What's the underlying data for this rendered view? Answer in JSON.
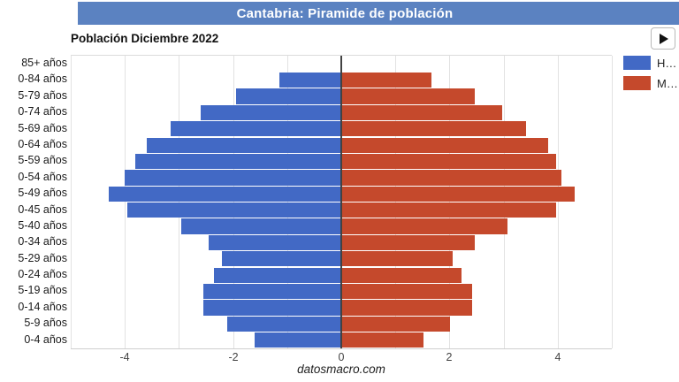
{
  "header": {
    "title": "Cantabria: Piramide de población"
  },
  "subtitle": "Población Diciembre 2022",
  "controls": {
    "play_button": "play"
  },
  "legend": {
    "items": [
      {
        "label": "H…",
        "color": "#4269c5"
      },
      {
        "label": "M…",
        "color": "#c5492c"
      }
    ]
  },
  "footer": {
    "brand": "datosmacro.com"
  },
  "colors": {
    "header_bg": "#5b82c1",
    "male_bar": "#4269c5",
    "female_bar": "#c5492c",
    "center_axis": "#424242",
    "gridline": "#e2e2e2",
    "tick_text": "#444444"
  },
  "chart_data": {
    "type": "bar",
    "subtype": "population-pyramid",
    "title": "Cantabria: Piramide de población",
    "subtitle": "Población Diciembre 2022",
    "categories": [
      "85+ años",
      "0-84 años",
      "5-79 años",
      "0-74 años",
      "5-69 años",
      "0-64 años",
      "5-59 años",
      "0-54 años",
      "5-49 años",
      "0-45 años",
      "5-40 años",
      "0-34 años",
      "5-29 años",
      "0-24 años",
      "5-19 años",
      "0-14 años",
      "5-9 años",
      "0-4 años"
    ],
    "series": [
      {
        "name": "H…",
        "color": "#4269c5",
        "values": [
          0,
          -1.15,
          -1.95,
          -2.6,
          -3.15,
          -3.6,
          -3.8,
          -4.0,
          -4.3,
          -3.95,
          -2.95,
          -2.45,
          -2.2,
          -2.35,
          -2.55,
          -2.55,
          -2.1,
          -1.6
        ]
      },
      {
        "name": "M…",
        "color": "#c5492c",
        "values": [
          0,
          1.65,
          2.45,
          2.95,
          3.4,
          3.8,
          3.95,
          4.05,
          4.3,
          3.95,
          3.05,
          2.45,
          2.05,
          2.2,
          2.4,
          2.4,
          2.0,
          1.5
        ]
      }
    ],
    "xlabel": "",
    "ylabel": "",
    "xlim": [
      -5,
      5
    ],
    "x_ticks": [
      -4,
      -2,
      0,
      2,
      4
    ],
    "gridlines_every": 1,
    "legend_position": "right",
    "grid": true
  }
}
